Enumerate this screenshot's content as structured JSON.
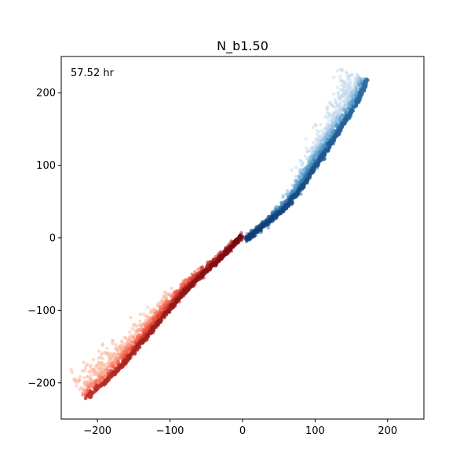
{
  "chart_data": {
    "type": "scatter",
    "title": "N_b1.50",
    "annotation": "57.52 hr",
    "xlabel": "",
    "ylabel": "",
    "xlim": [
      -250,
      250
    ],
    "ylim": [
      -250,
      250
    ],
    "xticks": [
      -200,
      -100,
      0,
      100,
      200
    ],
    "yticks": [
      -200,
      -100,
      0,
      100,
      200
    ],
    "xtick_labels": [
      "−200",
      "−100",
      "0",
      "100",
      "200"
    ],
    "ytick_labels": [
      "−200",
      "−100",
      "0",
      "100",
      "200"
    ],
    "grid": false,
    "legend": "none",
    "series": [
      {
        "colormap": "Blues",
        "dark_color": "#08306b",
        "mid_color": "#4a98c9",
        "light_color": "#c6dbef",
        "centerline": [
          [
            5,
            -2
          ],
          [
            30,
            18
          ],
          [
            60,
            42
          ],
          [
            80,
            66
          ],
          [
            100,
            98
          ],
          [
            120,
            127
          ],
          [
            140,
            158
          ],
          [
            160,
            190
          ],
          [
            172,
            218
          ]
        ],
        "spread_max": 18,
        "spread_side": "left"
      },
      {
        "colormap": "Reds",
        "dark_color": "#67000d",
        "mid_color": "#f44f39",
        "light_color": "#fcbba1",
        "centerline": [
          [
            -2,
            2
          ],
          [
            -30,
            -28
          ],
          [
            -60,
            -55
          ],
          [
            -85,
            -80
          ],
          [
            -110,
            -110
          ],
          [
            -140,
            -145
          ],
          [
            -165,
            -175
          ],
          [
            -190,
            -200
          ],
          [
            -215,
            -220
          ]
        ],
        "spread_max": 18,
        "spread_side": "right"
      }
    ]
  }
}
